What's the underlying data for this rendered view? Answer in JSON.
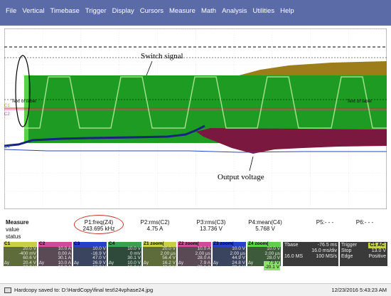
{
  "menu": [
    "File",
    "Vertical",
    "Timebase",
    "Trigger",
    "Display",
    "Cursors",
    "Measure",
    "Math",
    "Analysis",
    "Utilities",
    "Help"
  ],
  "plot": {
    "annotations": {
      "switch": "Switch signal",
      "output": "Output voltage"
    },
    "label_left": "Text of label",
    "label_right": "Text of label",
    "markers": [
      "C1",
      "C2",
      "C4"
    ]
  },
  "measure": {
    "title": "Measure",
    "row_value": "value",
    "row_status": "status",
    "cols": [
      {
        "name": "P1:freq(Z4)",
        "value": "243.695 kHz"
      },
      {
        "name": "P2:rms(C2)",
        "value": "4.75 A"
      },
      {
        "name": "P3:rms(C3)",
        "value": "13.736 V"
      },
      {
        "name": "P4:mean(C4)",
        "value": "5.768 V"
      },
      {
        "name": "P5:- - -",
        "value": ""
      },
      {
        "name": "P6:- - -",
        "value": ""
      }
    ]
  },
  "channels": [
    {
      "id": "c1",
      "tag": "C1",
      "vals": [
        "20.0 V",
        "-400 mV",
        "60.6 V",
        "20.4 V",
        "-10.0 V"
      ],
      "dy": "Δy"
    },
    {
      "id": "c2",
      "tag": "C2",
      "vals": [
        "10.0 A",
        "0.00 A",
        "30.1 A",
        "10.0 A",
        "-10.0 A"
      ],
      "dy": "Δy"
    },
    {
      "id": "c3",
      "tag": "C3",
      "vals": [
        "10.0 V",
        "-16.9 V",
        "47.0 V",
        "26.9 V",
        "-10.0 V"
      ],
      "dy": "Δy"
    },
    {
      "id": "c4",
      "tag": "C4",
      "vals": [
        "10.0 V",
        "0 mV",
        "30.1 V",
        "10.0 V",
        "-10.0 V"
      ],
      "dy": "Δy"
    },
    {
      "id": "z1",
      "tag": "Z1 zoom(",
      "vals": [
        "20.0 V",
        "2.00 μs",
        "56.4 V",
        "16.2 V",
        "-40.2 V"
      ],
      "dy": "Δy"
    },
    {
      "id": "z2",
      "tag": "Z2 zoom(",
      "vals": [
        "10.0 A",
        "2.00 μs",
        "28.0 A",
        "7.9 A",
        "-20.1 A"
      ],
      "dy": "Δy"
    },
    {
      "id": "z3",
      "tag": "Z3 zoom(",
      "vals": [
        "10.0 V",
        "2.00 μs",
        "44.9 V",
        "24.8 V",
        "-20.1 V"
      ],
      "dy": "Δy"
    },
    {
      "id": "z4",
      "tag": "Z4 zoom(",
      "vals": [
        "10.0 V",
        "2.00 μs",
        "28.0 V",
        "7.9 V",
        "-20.1 V"
      ],
      "dy": "Δy"
    }
  ],
  "timebase": {
    "label": "Tbase",
    "offset": "-76.5 ms",
    "div": "16.0 ms/div",
    "samples": "16.0 MS",
    "rate": "100 MS/s"
  },
  "trigger": {
    "label": "Trigger",
    "badge": "C1 AC",
    "mode": "Stop",
    "level": "13.0 V",
    "type": "Edge",
    "slope": "Positive"
  },
  "status": {
    "message": "Hardcopy saved to: D:\\HardCopy\\final test\\24vphase24.jpg",
    "datetime": "12/23/2016 5:43:23 AM"
  }
}
